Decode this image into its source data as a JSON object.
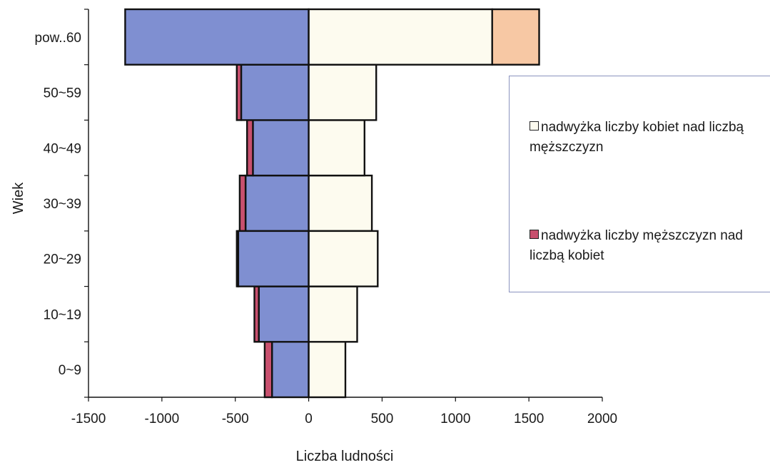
{
  "chart_data": {
    "type": "bar",
    "orientation": "horizontal",
    "stacked": true,
    "categories": [
      "0~9",
      "10~19",
      "20~29",
      "30~39",
      "40~49",
      "50~59",
      "pow..60"
    ],
    "series": [
      {
        "key": "men",
        "values": [
          -250,
          -340,
          -480,
          -430,
          -380,
          -460,
          -1250
        ],
        "color": "#7f8fd1"
      },
      {
        "key": "women",
        "values": [
          250,
          330,
          470,
          430,
          380,
          460,
          1250
        ],
        "color": "#fdfbef"
      },
      {
        "key": "men_surplus",
        "name": "nadwyżka liczby męższczyzn nad liczbą kobiet",
        "values": [
          -50,
          -30,
          -10,
          -40,
          -40,
          -30,
          0
        ],
        "color": "#c8506e"
      },
      {
        "key": "women_surplus",
        "name": "nadwyżka liczby kobiet nad liczbą męższczyzn",
        "values": [
          0,
          0,
          0,
          0,
          0,
          0,
          320
        ],
        "color": "#f7c8a4"
      }
    ],
    "xlim": [
      -1500,
      2000
    ],
    "xticks": [
      -1500,
      -1000,
      -500,
      0,
      500,
      1000,
      1500,
      2000
    ],
    "xlabel": "Liczba ludności",
    "ylabel": "Wiek",
    "title": "",
    "grid": false,
    "legend_position": "right"
  }
}
